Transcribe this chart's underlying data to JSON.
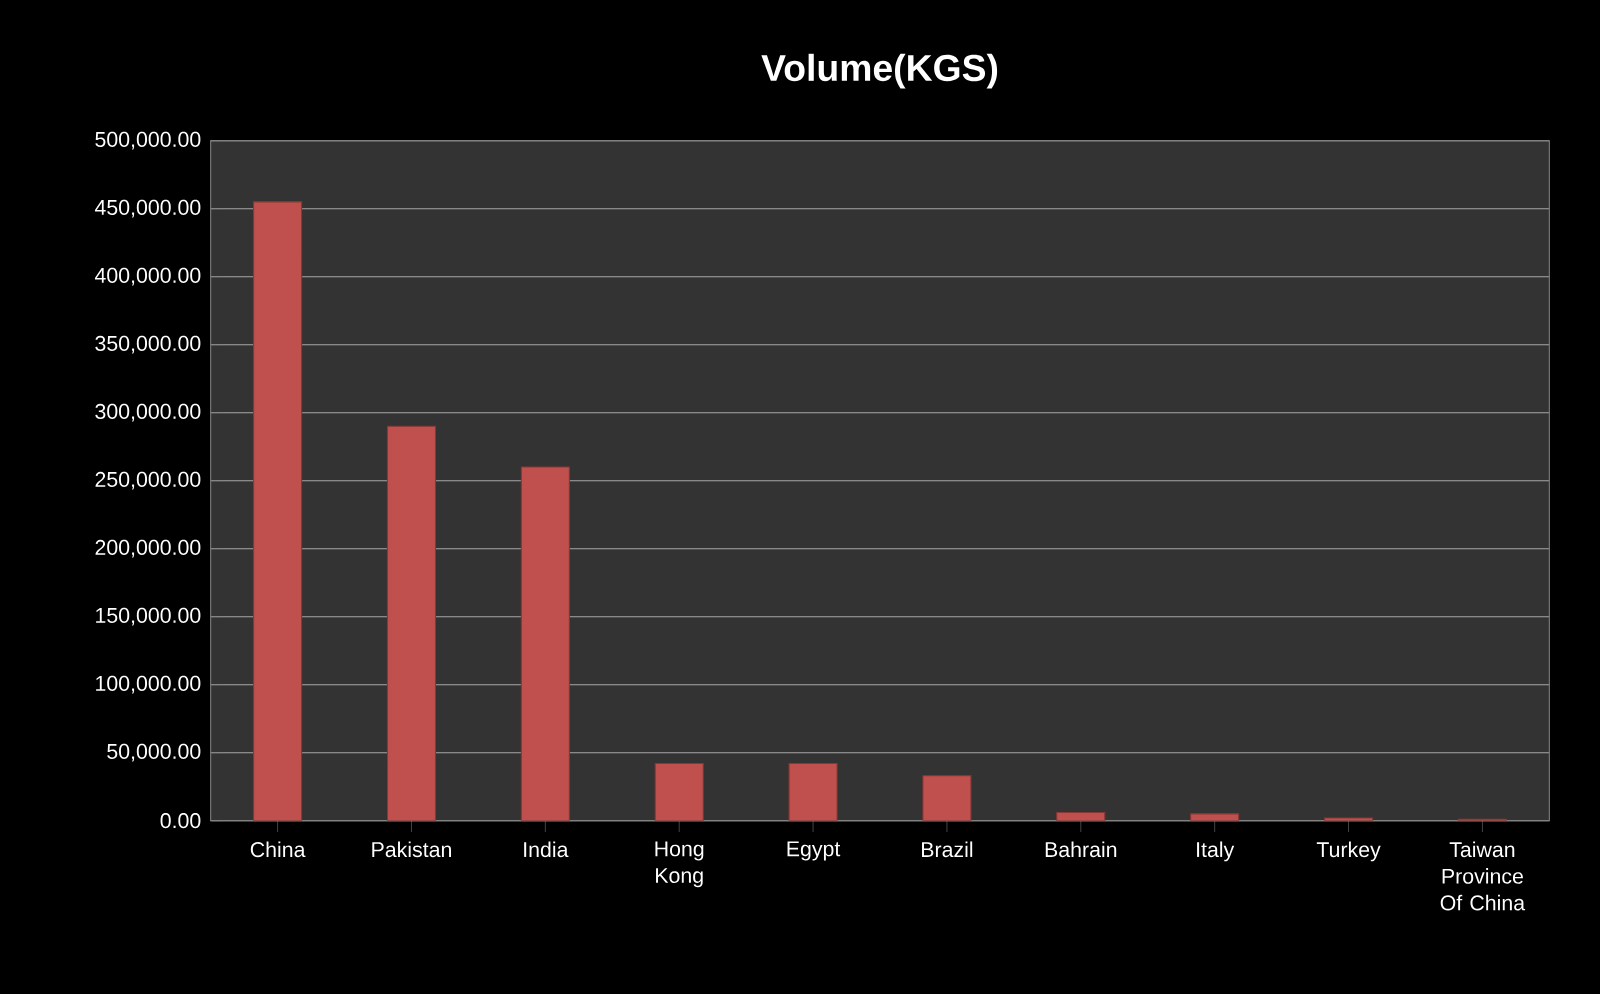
{
  "chart_data": {
    "type": "bar",
    "title": "Volume(KGS)",
    "categories": [
      "China",
      "Pakistan",
      "India",
      "Hong Kong",
      "Egypt",
      "Brazil",
      "Bahrain",
      "Italy",
      "Turkey",
      "Taiwan Province Of China"
    ],
    "values": [
      455000,
      290000,
      260000,
      42000,
      42000,
      33000,
      6000,
      5000,
      2000,
      1000
    ],
    "color": "#c0504d",
    "ylim": [
      0,
      500000
    ],
    "yticks": [
      {
        "value": 0,
        "label": "0.00"
      },
      {
        "value": 50000,
        "label": "50,000.00"
      },
      {
        "value": 100000,
        "label": "100,000.00"
      },
      {
        "value": 150000,
        "label": "150,000.00"
      },
      {
        "value": 200000,
        "label": "200,000.00"
      },
      {
        "value": 250000,
        "label": "250,000.00"
      },
      {
        "value": 300000,
        "label": "300,000.00"
      },
      {
        "value": 350000,
        "label": "350,000.00"
      },
      {
        "value": 400000,
        "label": "400,000.00"
      },
      {
        "value": 450000,
        "label": "450,000.00"
      },
      {
        "value": 500000,
        "label": "500,000.00"
      }
    ],
    "grid": "y"
  }
}
